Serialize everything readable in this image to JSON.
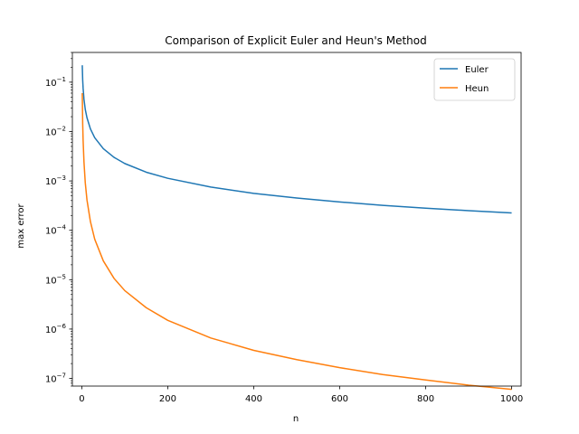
{
  "chart_data": {
    "type": "line",
    "title": "Comparison of Explicit Euler and Heun's Method",
    "xlabel": "n",
    "ylabel": "max error",
    "xlim": [
      -22,
      1022
    ],
    "ylim": [
      7e-08,
      0.4
    ],
    "yscale": "log",
    "grid": false,
    "legend_position": "top-right",
    "xticks": [
      0,
      200,
      400,
      600,
      800,
      1000
    ],
    "yticks": [
      {
        "value": 1e-07,
        "base": "10",
        "exp": "−7"
      },
      {
        "value": 1e-06,
        "base": "10",
        "exp": "−6"
      },
      {
        "value": 1e-05,
        "base": "10",
        "exp": "−5"
      },
      {
        "value": 0.0001,
        "base": "10",
        "exp": "−4"
      },
      {
        "value": 0.001,
        "base": "10",
        "exp": "−3"
      },
      {
        "value": 0.01,
        "base": "10",
        "exp": "−2"
      },
      {
        "value": 0.1,
        "base": "10",
        "exp": "−1"
      }
    ],
    "series": [
      {
        "name": "Euler",
        "color": "#1f77b4",
        "x": [
          1,
          2,
          3,
          5,
          8,
          12,
          20,
          30,
          50,
          75,
          100,
          150,
          200,
          300,
          400,
          500,
          600,
          700,
          800,
          900,
          1000
        ],
        "y": [
          0.22,
          0.11,
          0.075,
          0.045,
          0.028,
          0.019,
          0.0113,
          0.0075,
          0.0045,
          0.003,
          0.00225,
          0.0015,
          0.00113,
          0.00075,
          0.00056,
          0.00045,
          0.000375,
          0.00032,
          0.00028,
          0.00025,
          0.000225
        ]
      },
      {
        "name": "Heun",
        "color": "#ff7f0e",
        "x": [
          1,
          2,
          3,
          5,
          8,
          12,
          20,
          30,
          50,
          75,
          100,
          150,
          200,
          300,
          400,
          500,
          600,
          700,
          800,
          900,
          1000
        ],
        "y": [
          0.06,
          0.0145,
          0.0066,
          0.0024,
          0.00092,
          0.00041,
          0.00015,
          6.6e-05,
          2.4e-05,
          1.06e-05,
          6e-06,
          2.7e-06,
          1.5e-06,
          6.6e-07,
          3.7e-07,
          2.4e-07,
          1.65e-07,
          1.2e-07,
          9.3e-08,
          7.3e-08,
          6e-08
        ]
      }
    ]
  }
}
